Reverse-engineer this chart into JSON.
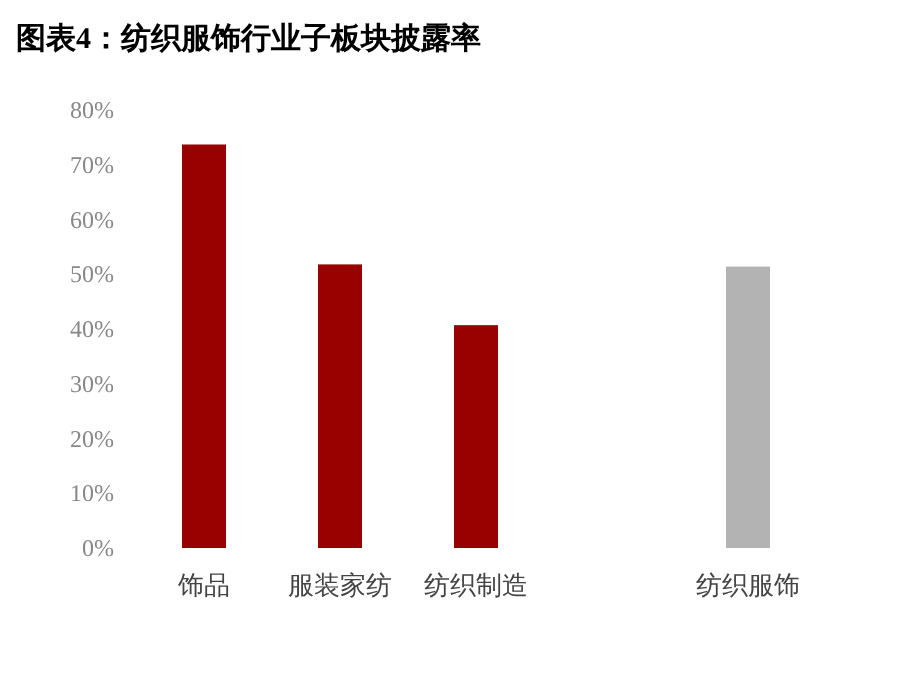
{
  "chart_data": {
    "type": "bar",
    "title": "图表4：纺织服饰行业子板块披露率",
    "categories": [
      "饰品",
      "服装家纺",
      "纺织制造",
      null,
      "纺织服饰"
    ],
    "values": [
      73.7,
      51.8,
      40.7,
      null,
      51.4
    ],
    "colors": [
      "#990000",
      "#990000",
      "#990000",
      null,
      "#b3b3b3"
    ],
    "ylim": [
      0,
      80
    ],
    "yticks": [
      {
        "value": 0,
        "label": "0%"
      },
      {
        "value": 10,
        "label": "10%"
      },
      {
        "value": 20,
        "label": "20%"
      },
      {
        "value": 30,
        "label": "30%"
      },
      {
        "value": 40,
        "label": "40%"
      },
      {
        "value": 50,
        "label": "50%"
      },
      {
        "value": 60,
        "label": "60%"
      },
      {
        "value": 70,
        "label": "70%"
      },
      {
        "value": 80,
        "label": "80%"
      }
    ],
    "grid": false
  }
}
